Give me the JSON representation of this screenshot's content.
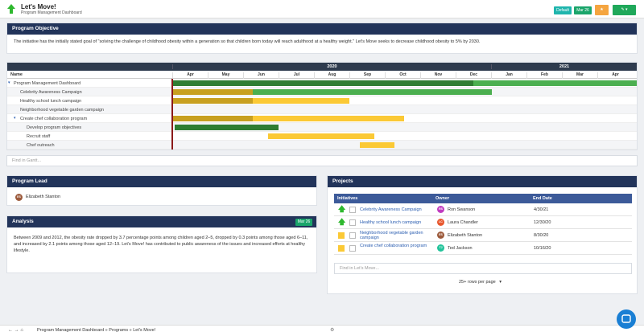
{
  "header": {
    "title": "Let's Move!",
    "subtitle": "Program Management Dashboard",
    "view": "Default",
    "date": "Mar 26"
  },
  "objective": {
    "title": "Program Objective",
    "text": "The initiative has the initially stated goal of \"solving the challenge of childhood obesity within a generation so that children born today will reach adulthood at a healthy weight.\" Let's Move seeks to decrease childhood obesity to 5% by 2030."
  },
  "gantt": {
    "name_header": "Name",
    "years": [
      "2020",
      "2021"
    ],
    "months": [
      "Apr",
      "May",
      "Jun",
      "Jul",
      "Aug",
      "Sep",
      "Oct",
      "Nov",
      "Dec",
      "Jan",
      "Feb",
      "Mar",
      "Apr"
    ],
    "rows": [
      "Program Management Dashboard",
      "Celebrity Awareness Campaign",
      "Healthy school lunch campaign",
      "Neighborhood vegetable garden campaign",
      "Create chef collaboration program",
      "Develop program objectives",
      "Recruit staff",
      "Chef outreach"
    ],
    "search": "Find in Gantt..."
  },
  "lead": {
    "title": "Program Lead",
    "initials": "ES",
    "name": "Elizabeth Stanton"
  },
  "analysis": {
    "title": "Analysis",
    "date": "Mar 26",
    "text": "Between 2009 and 2012, the obesity rate dropped by 3.7 percentage points among children aged 2–5, dropped by 0.3 points among those aged 6–11, and increased by 2.1 points among those aged 12–19. Let's Move! has contributed to public awareness of the issues and increased efforts at healthy lifestyle."
  },
  "projects": {
    "title": "Projects",
    "columns": [
      "Initiatives",
      "Owner",
      "End Date"
    ],
    "rows": [
      {
        "initiative": "Celebrity Awareness Campaign",
        "initials": "RS",
        "owner": "Ron Swanson",
        "end_date": "4/30/21"
      },
      {
        "initiative": "Healthy school lunch campaign",
        "initials": "LC",
        "owner": "Laura Chandler",
        "end_date": "12/30/20"
      },
      {
        "initiative": "Neighborhood vegetable garden campaign",
        "initials": "ES",
        "owner": "Elizabeth Stanton",
        "end_date": "8/30/20"
      },
      {
        "initiative": "Create chef collaboration program",
        "initials": "TJ",
        "owner": "Ted Jackson",
        "end_date": "10/16/20"
      }
    ],
    "search": "Find in Let's Move...",
    "paging": "25+ rows per page"
  },
  "breadcrumb": "Program Management Dashboard » Programs » Let's Move!"
}
